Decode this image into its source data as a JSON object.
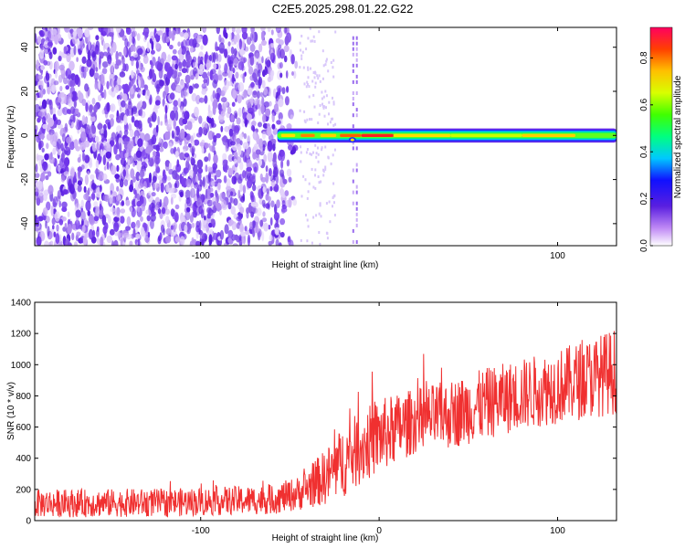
{
  "title": "C2E5.2025.298.01.22.G22",
  "chart_data": [
    {
      "type": "heatmap",
      "xlabel": "Height of straight line (km)",
      "ylabel": "Frequency (Hz)",
      "xlim": [
        -193,
        133
      ],
      "ylim": [
        -50,
        49
      ],
      "xticks": [
        -100,
        0,
        100
      ],
      "xtick_labels": [
        "-100",
        "",
        "100"
      ],
      "yticks": [
        -40,
        -20,
        0,
        20,
        40
      ],
      "ytick_labels": [
        "-40",
        "-20",
        "0",
        "20",
        "40"
      ],
      "colorbar": {
        "label": "Normalized spectral amplitude",
        "range": [
          0,
          0.93
        ],
        "ticks": [
          0,
          0.2,
          0.4,
          0.6,
          0.8
        ],
        "tick_labels": [
          "0.0",
          "0.2",
          "0.4",
          "0.6",
          "0.8"
        ]
      },
      "features": {
        "noise_region_x": [
          -193,
          -45
        ],
        "carrier_start_x": -57,
        "carrier_frequency": 0,
        "carrier_halfwidth_hz": [
          2,
          3
        ],
        "vertical_streaks_x": [
          -15,
          -13
        ]
      }
    },
    {
      "type": "line",
      "xlabel": "Height of straight line (km)",
      "ylabel": "SNR (10 * v/v)",
      "xlim": [
        -193,
        133
      ],
      "ylim": [
        0,
        1400
      ],
      "xticks": [
        -100,
        0,
        100
      ],
      "xtick_labels": [
        "-100",
        "0",
        "100"
      ],
      "yticks": [
        0,
        200,
        400,
        600,
        800,
        1000,
        1200,
        1400
      ],
      "ytick_labels": [
        "0",
        "200",
        "400",
        "600",
        "800",
        "1000",
        "1200",
        "1400"
      ],
      "series": [
        {
          "name": "SNR",
          "color": "#f03030",
          "envelope_x": [
            -193,
            -120,
            -60,
            -45,
            -30,
            -20,
            -10,
            0,
            20,
            40,
            60,
            80,
            100,
            120,
            133
          ],
          "envelope_mean": [
            110,
            115,
            135,
            175,
            280,
            380,
            470,
            540,
            640,
            680,
            750,
            810,
            860,
            920,
            960
          ],
          "envelope_spread": [
            90,
            90,
            95,
            110,
            180,
            230,
            240,
            240,
            210,
            220,
            230,
            230,
            240,
            260,
            280
          ]
        }
      ]
    }
  ],
  "colors": {
    "signal_red": "#f03030",
    "noise_purple": "#6a2ee8"
  }
}
